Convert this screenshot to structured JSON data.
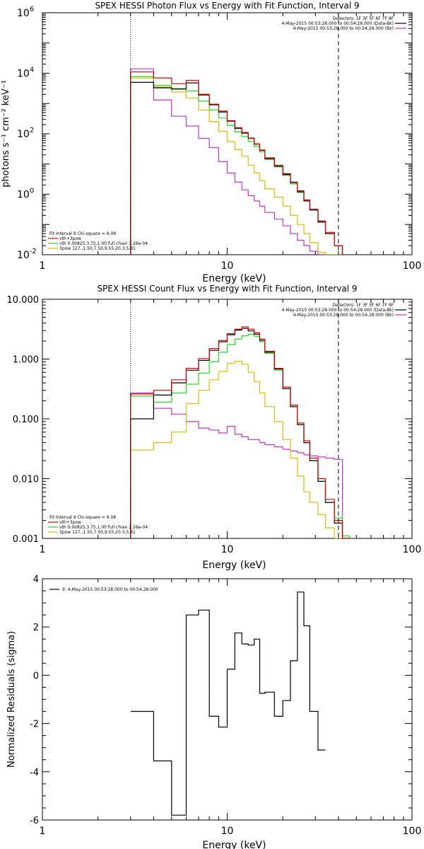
{
  "colors": {
    "data": "#000000",
    "bkg": "#cc33cc",
    "model_total": "#dd0000",
    "model_vth": "#22dd22",
    "model_3pow": "#ddbb00",
    "frame": "#000000"
  },
  "chart_data": [
    {
      "type": "line",
      "title": "SPEX HESSI Photon Flux vs Energy with Fit Function, Interval 9",
      "xlabel": "Energy (keV)",
      "ylabel": "photons s⁻¹ cm⁻² keV⁻¹",
      "xscale": "log",
      "yscale": "log",
      "xlim": [
        1,
        100
      ],
      "ylim": [
        0.01,
        1000000
      ],
      "x_ticks": [
        "1",
        "10",
        "100"
      ],
      "y_ticks": [
        {
          "v": 0.01,
          "m": "10",
          "e": "-2"
        },
        {
          "v": 1,
          "m": "10",
          "e": "0"
        },
        {
          "v": 100,
          "m": "10",
          "e": "2"
        },
        {
          "v": 10000,
          "m": "10",
          "e": "4"
        },
        {
          "v": 1000000,
          "m": "10",
          "e": "6"
        }
      ],
      "fit_range_keV": [
        3,
        40
      ],
      "legend_top_right": [
        "Detectors: 1F 3F 5F 6F 7F 9F",
        "4-May-2015 00:53:28.000 to 00:54:28.000 (Data-Bk)",
        "4-May-2015 00:53:28.000 to 00:54:28.000 (Bk)"
      ],
      "legend_bottom_left": [
        "Fit Interval 9   Chi-square = 9.08",
        "vth+3pow",
        "vth 0.00825,3.75,1.00  full chian 1.26e-04",
        "3pow 127.,1.50,7.50,9.55,20.3,5.81"
      ],
      "edges": [
        3,
        4,
        5,
        6,
        7,
        8,
        9,
        10,
        11,
        12,
        13,
        14,
        15,
        16,
        18,
        20,
        22,
        24,
        26,
        28,
        31,
        34,
        38,
        42
      ],
      "series": [
        {
          "name": "Data-Bk",
          "color_key": "data",
          "values": [
            5000,
            3300,
            3000,
            4800,
            1900,
            900,
            520,
            260,
            150,
            105,
            70,
            45,
            28,
            15,
            8.5,
            4.5,
            2.4,
            1.2,
            0.6,
            0.3,
            0.12,
            0.05,
            0.02
          ]
        },
        {
          "name": "Bk",
          "color_key": "bkg",
          "values": [
            14000,
            1300,
            380,
            180,
            70,
            35,
            12,
            5,
            2.5,
            1.4,
            0.9,
            0.6,
            0.4,
            0.25,
            0.15,
            0.09,
            0.05,
            0.03,
            0.02,
            0.013,
            0.01,
            0.01,
            0.01
          ]
        },
        {
          "name": "vth+3pow",
          "color_key": "model_total",
          "values": [
            11000,
            7000,
            4500,
            5800,
            2000,
            950,
            560,
            270,
            160,
            110,
            72,
            46,
            29,
            16,
            9,
            4.8,
            2.5,
            1.3,
            0.65,
            0.32,
            0.13,
            0.055,
            0.02
          ]
        },
        {
          "name": "vth",
          "color_key": "model_vth",
          "values": [
            7800,
            4000,
            3100,
            2600,
            1200,
            610,
            330,
            190,
            115,
            80,
            55,
            38,
            25,
            14,
            8,
            4.2,
            2.2,
            1.15,
            0.6,
            0.3,
            0.12,
            0.05,
            0.02
          ]
        },
        {
          "name": "3pow",
          "color_key": "model_3pow",
          "values": [
            7000,
            3500,
            2400,
            1500,
            600,
            250,
            120,
            55,
            30,
            18,
            9,
            5,
            2.8,
            1.5,
            0.8,
            0.4,
            0.2,
            0.1,
            0.05,
            0.025,
            0.012,
            0.01,
            0.01
          ]
        }
      ]
    },
    {
      "type": "line",
      "title": "SPEX HESSI Count Flux vs Energy with Fit Function, Interval 9",
      "xlabel": "Energy (keV)",
      "ylabel": "",
      "xscale": "log",
      "yscale": "log",
      "xlim": [
        1,
        100
      ],
      "ylim": [
        0.001,
        10
      ],
      "x_ticks": [
        "1",
        "10",
        "100"
      ],
      "y_ticks": [
        {
          "v": 0.001,
          "t": "0.001"
        },
        {
          "v": 0.01,
          "t": "0.010"
        },
        {
          "v": 0.1,
          "t": "0.100"
        },
        {
          "v": 1,
          "t": "1.000"
        },
        {
          "v": 10,
          "t": "10.000"
        }
      ],
      "fit_range_keV": [
        3,
        40
      ],
      "legend_top_right": [
        "Detectors: 1F 3F 5F 6F 7F 9F",
        "4-May-2015 00:53:28.000 to 00:54:28.000 (Data-Bk)",
        "4-May-2015 00:53:28.000 to 00:54:28.000 (Bk)"
      ],
      "legend_bottom_left": [
        "Fit Interval 9   Chi-square = 9.08",
        "vth+3pow",
        "vth 0.00825,3.75,1.00  full chian 1.26e-04",
        "3pow 127.,1.50,7.50,9.55,20.3,5.81"
      ],
      "edges": [
        3,
        4,
        5,
        6,
        7,
        8,
        9,
        10,
        11,
        12,
        13,
        14,
        15,
        16,
        18,
        20,
        22,
        24,
        26,
        28,
        31,
        34,
        38,
        42,
        46
      ],
      "series": [
        {
          "name": "Data-Bk",
          "color_key": "data",
          "values": [
            0.1,
            0.25,
            0.4,
            0.65,
            0.95,
            1.4,
            1.95,
            2.55,
            3.05,
            3.25,
            2.95,
            2.6,
            2.05,
            1.3,
            0.68,
            0.32,
            0.16,
            0.08,
            0.04,
            0.02,
            0.009,
            0.004,
            0.0018,
            0.001
          ]
        },
        {
          "name": "Bk",
          "color_key": "bkg",
          "values": [
            0.27,
            0.15,
            0.12,
            0.09,
            0.07,
            0.065,
            0.058,
            0.075,
            0.055,
            0.05,
            0.045,
            0.045,
            0.04,
            0.037,
            0.034,
            0.031,
            0.029,
            0.027,
            0.025,
            0.024,
            0.023,
            0.022,
            0.021,
            0.001
          ]
        },
        {
          "name": "vth+3pow",
          "color_key": "model_total",
          "values": [
            0.26,
            0.3,
            0.45,
            0.7,
            1.02,
            1.5,
            2.05,
            2.65,
            3.15,
            3.45,
            3.15,
            2.75,
            2.15,
            1.35,
            0.7,
            0.34,
            0.17,
            0.085,
            0.043,
            0.022,
            0.01,
            0.0045,
            0.002,
            0.001
          ]
        },
        {
          "name": "vth",
          "color_key": "model_vth",
          "values": [
            0.24,
            0.19,
            0.27,
            0.38,
            0.58,
            0.9,
            1.3,
            1.75,
            2.15,
            2.45,
            2.6,
            2.4,
            1.95,
            1.25,
            0.65,
            0.32,
            0.16,
            0.08,
            0.04,
            0.02,
            0.009,
            0.004,
            0.0022,
            0.0011
          ]
        },
        {
          "name": "3pow",
          "color_key": "model_3pow",
          "values": [
            0.03,
            0.04,
            0.06,
            0.18,
            0.3,
            0.45,
            0.62,
            0.85,
            0.92,
            0.82,
            0.6,
            0.42,
            0.27,
            0.16,
            0.09,
            0.045,
            0.022,
            0.011,
            0.006,
            0.004,
            0.0025,
            0.0015,
            0.001,
            0.001
          ]
        }
      ]
    },
    {
      "type": "line",
      "title": "",
      "xlabel": "Energy (keV)",
      "ylabel": "Normalized Residuals (sigma)",
      "xscale": "log",
      "yscale": "linear",
      "xlim": [
        1,
        100
      ],
      "ylim": [
        -6,
        4
      ],
      "x_ticks": [
        "1",
        "10",
        "100"
      ],
      "y_ticks": [
        {
          "v": -6,
          "t": "-6"
        },
        {
          "v": -4,
          "t": "-4"
        },
        {
          "v": -2,
          "t": "-2"
        },
        {
          "v": 0,
          "t": "0"
        },
        {
          "v": 2,
          "t": "2"
        },
        {
          "v": 4,
          "t": "4"
        }
      ],
      "legend": "9.  4-May-2015 00:53:28.000 to 00:54:28.000",
      "edges": [
        3,
        4,
        5,
        6,
        7,
        8,
        9,
        10,
        11,
        12,
        13,
        14,
        15,
        16,
        18,
        20,
        22,
        24,
        26,
        28,
        31,
        34,
        38,
        42
      ],
      "series": [
        {
          "name": "9.  4-May-2015 00:53:28.000 to 00:54:28.000",
          "color_key": "data",
          "values": [
            -1.5,
            -3.55,
            -5.8,
            2.5,
            2.7,
            -1.7,
            -2.15,
            0.25,
            1.75,
            1.3,
            1.25,
            1.5,
            -0.75,
            -0.7,
            -1.7,
            -1.05,
            0.6,
            3.45,
            2.05,
            -1.5,
            -3.1,
            null,
            null
          ]
        }
      ]
    }
  ]
}
